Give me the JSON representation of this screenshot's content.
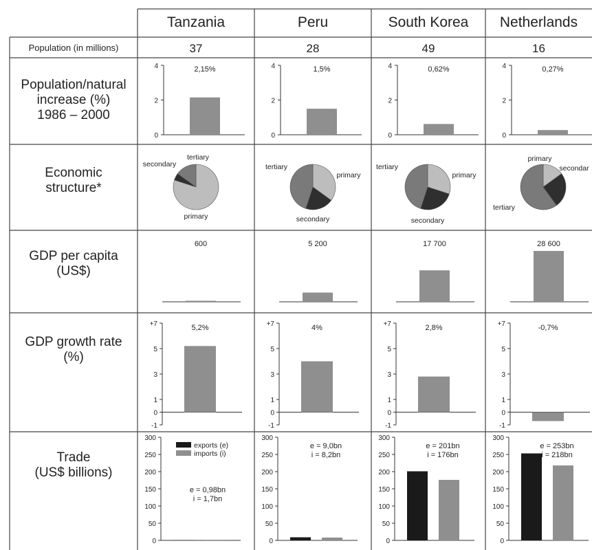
{
  "table": {
    "countries": [
      "Tanzania",
      "Peru",
      "South Korea",
      "Netherlands"
    ],
    "row_labels": {
      "population": "Population (in millions)",
      "natural_increase": [
        "Population/natural",
        "increase (%)",
        "1986 – 2000"
      ],
      "economic_structure": [
        "Economic",
        "structure*"
      ],
      "gdp_per_capita": [
        "GDP per capita",
        "(US$)"
      ],
      "gdp_growth": [
        "GDP growth rate",
        "(%)"
      ],
      "trade": [
        "Trade",
        "(US$ billions)"
      ]
    },
    "population": [
      "37",
      "28",
      "49",
      "16"
    ]
  },
  "pie_labels": {
    "primary": "primary",
    "secondary": "secondary",
    "tertiary": "tertiary",
    "secondary_cut": "secondar"
  },
  "legend": {
    "exports": "exports (e)",
    "imports": "imports (i)"
  },
  "colors": {
    "exports": "#1a1a1a",
    "imports": "#8f8f8f",
    "bar": "#8f8f8f",
    "primary": "#bdbdbd",
    "secondary": "#2f2f2f",
    "tertiary": "#7a7a7a"
  },
  "chart_data": [
    {
      "type": "bar",
      "title": "Population/natural increase (%) 1986 – 2000",
      "categories": [
        "Tanzania",
        "Peru",
        "South Korea",
        "Netherlands"
      ],
      "values": [
        2.15,
        1.5,
        0.62,
        0.27
      ],
      "value_labels": [
        "2,15%",
        "1,5%",
        "0,62%",
        "0,27%"
      ],
      "ylim": [
        0,
        4
      ],
      "yticks": [
        "0",
        "2",
        "4"
      ]
    },
    {
      "type": "pie",
      "title": "Economic structure*",
      "categories": [
        "Tanzania",
        "Peru",
        "South Korea",
        "Netherlands"
      ],
      "series": [
        {
          "name": "primary",
          "values": [
            80,
            35,
            30,
            15
          ]
        },
        {
          "name": "secondary",
          "values": [
            5,
            20,
            25,
            25
          ]
        },
        {
          "name": "tertiary",
          "values": [
            15,
            45,
            45,
            60
          ]
        }
      ]
    },
    {
      "type": "bar",
      "title": "GDP per capita (US$)",
      "categories": [
        "Tanzania",
        "Peru",
        "South Korea",
        "Netherlands"
      ],
      "values": [
        600,
        5200,
        17700,
        28600
      ],
      "value_labels": [
        "600",
        "5 200",
        "17 700",
        "28 600"
      ],
      "ylim": [
        0,
        30000
      ]
    },
    {
      "type": "bar",
      "title": "GDP growth rate (%)",
      "categories": [
        "Tanzania",
        "Peru",
        "South Korea",
        "Netherlands"
      ],
      "values": [
        5.2,
        4,
        2.8,
        -0.7
      ],
      "value_labels": [
        "5,2%",
        "4%",
        "2,8%",
        "-0,7%"
      ],
      "ylim": [
        -1,
        7
      ],
      "yticks": [
        "-1",
        "0",
        "1",
        "3",
        "5",
        "+7"
      ]
    },
    {
      "type": "bar",
      "title": "Trade (US$ billions)",
      "categories": [
        "Tanzania",
        "Peru",
        "South Korea",
        "Netherlands"
      ],
      "series": [
        {
          "name": "exports (e)",
          "values": [
            0.98,
            9.0,
            201,
            253
          ]
        },
        {
          "name": "imports (i)",
          "values": [
            1.7,
            8.2,
            176,
            218
          ]
        }
      ],
      "value_labels": [
        [
          "e = 0,98bn",
          "i = 1,7bn"
        ],
        [
          "e = 9,0bn",
          "i = 8,2bn"
        ],
        [
          "e = 201bn",
          "i = 176bn"
        ],
        [
          "e = 253bn",
          "i = 218bn"
        ]
      ],
      "ylim": [
        0,
        300
      ],
      "yticks": [
        "0",
        "50",
        "100",
        "150",
        "200",
        "250",
        "300"
      ]
    }
  ]
}
